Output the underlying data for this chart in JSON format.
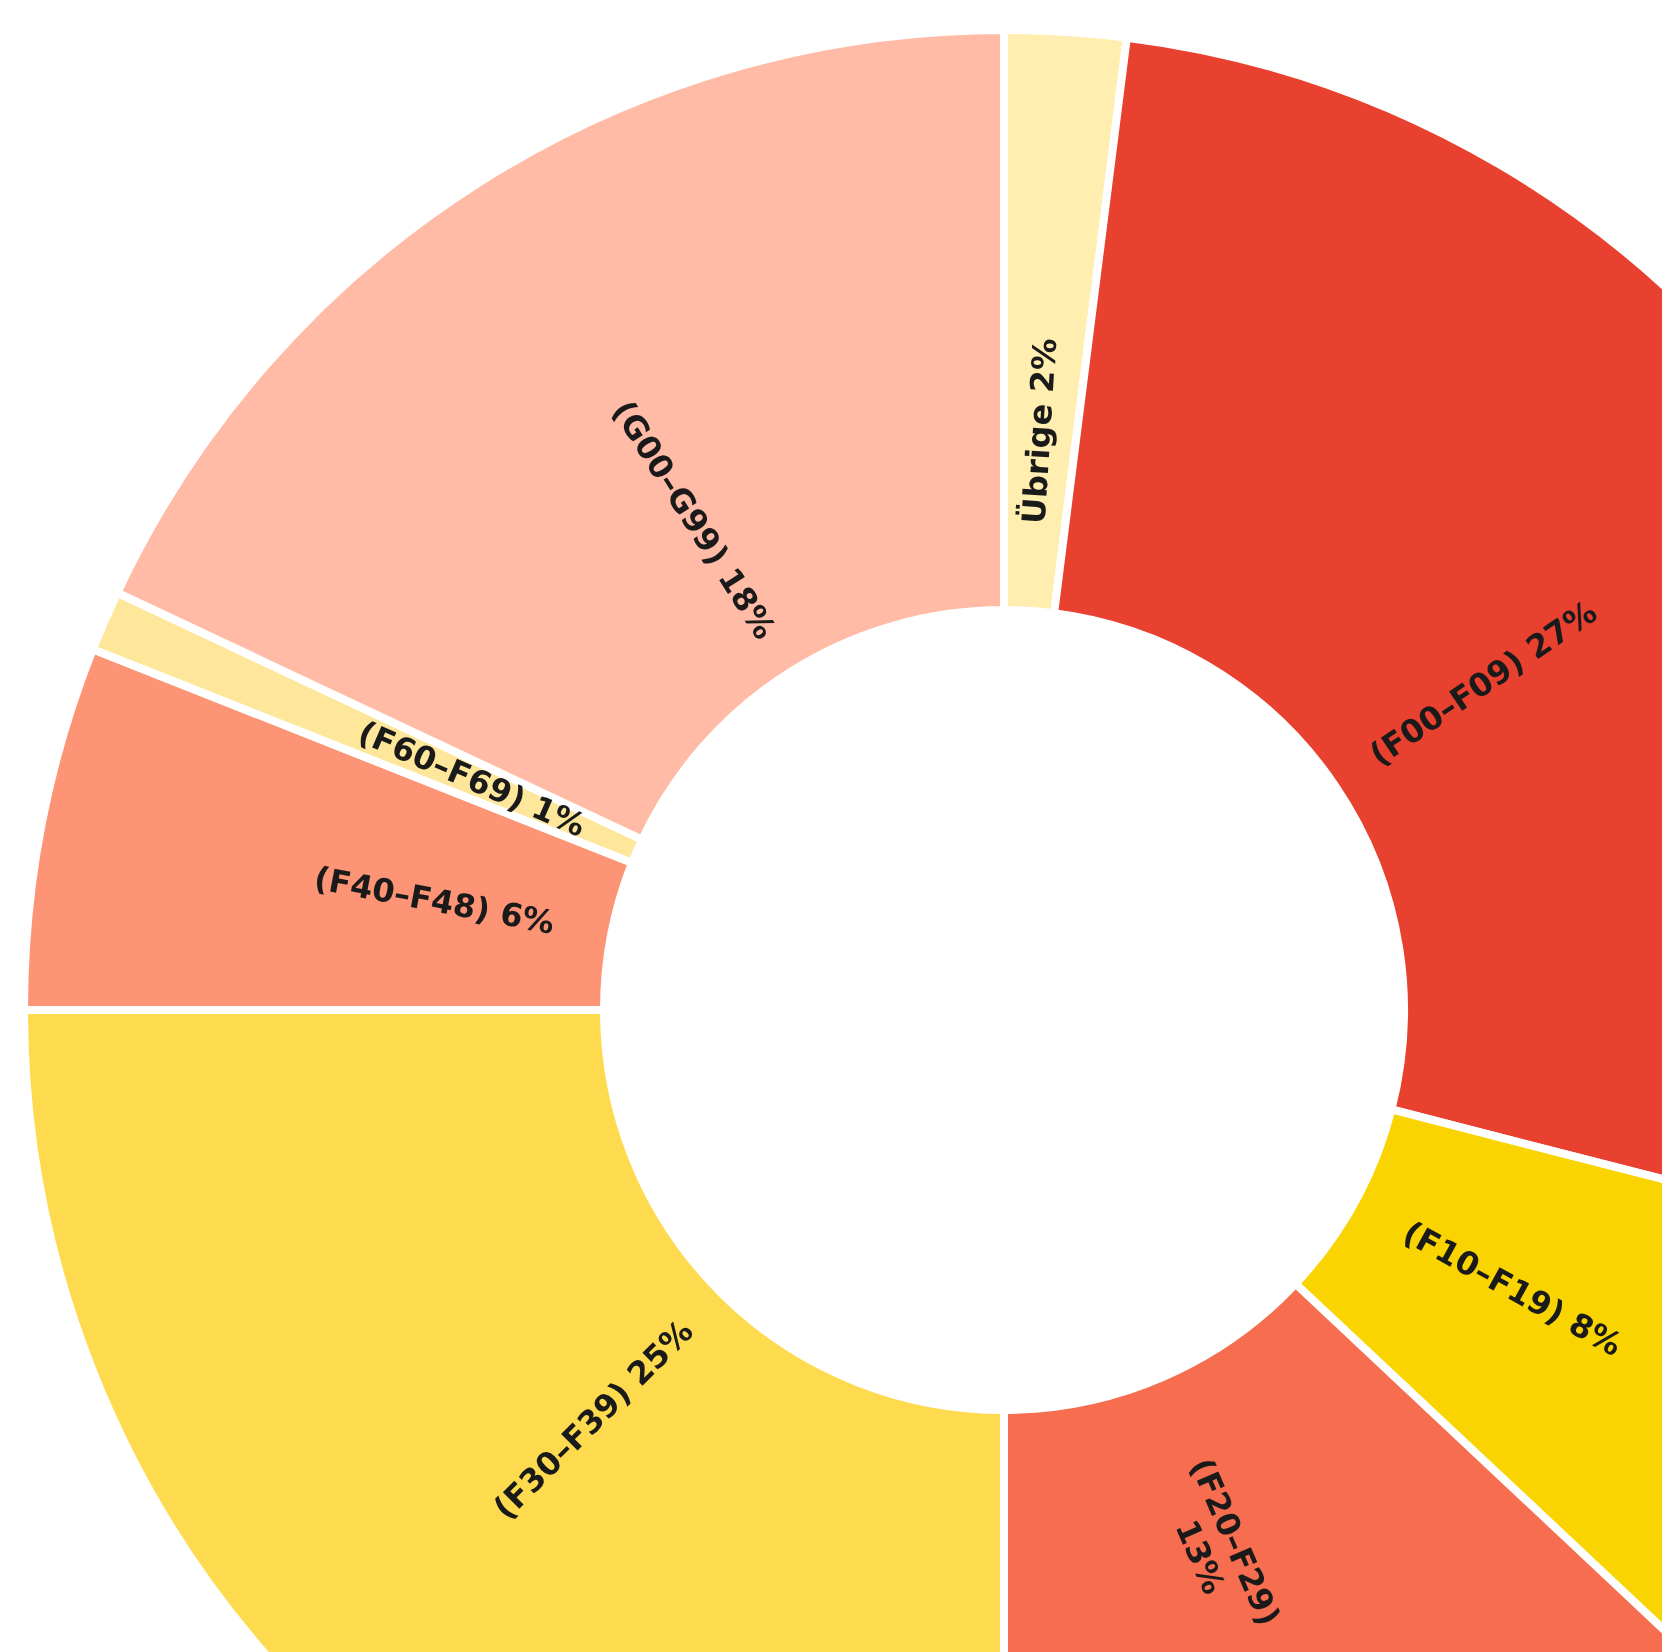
{
  "chart_data": {
    "type": "donut",
    "categories": [
      "Übrige",
      "(F00–F09)",
      "(F10–F19)",
      "(F20–F29)",
      "(F30–F39)",
      "(F40–F48)",
      "(F60–F69)",
      "(G00–G99)"
    ],
    "values": [
      2,
      27,
      8,
      13,
      25,
      6,
      1,
      18
    ],
    "value_labels": [
      "2%",
      "27%",
      "8%",
      "13%",
      "25%",
      "6%",
      "1%",
      "18%"
    ],
    "colors": [
      "#ffeeb0",
      "#e8412f",
      "#f9d400",
      "#f66d50",
      "#fedb4e",
      "#fd9475",
      "#fee79a",
      "#ffbba5"
    ]
  }
}
